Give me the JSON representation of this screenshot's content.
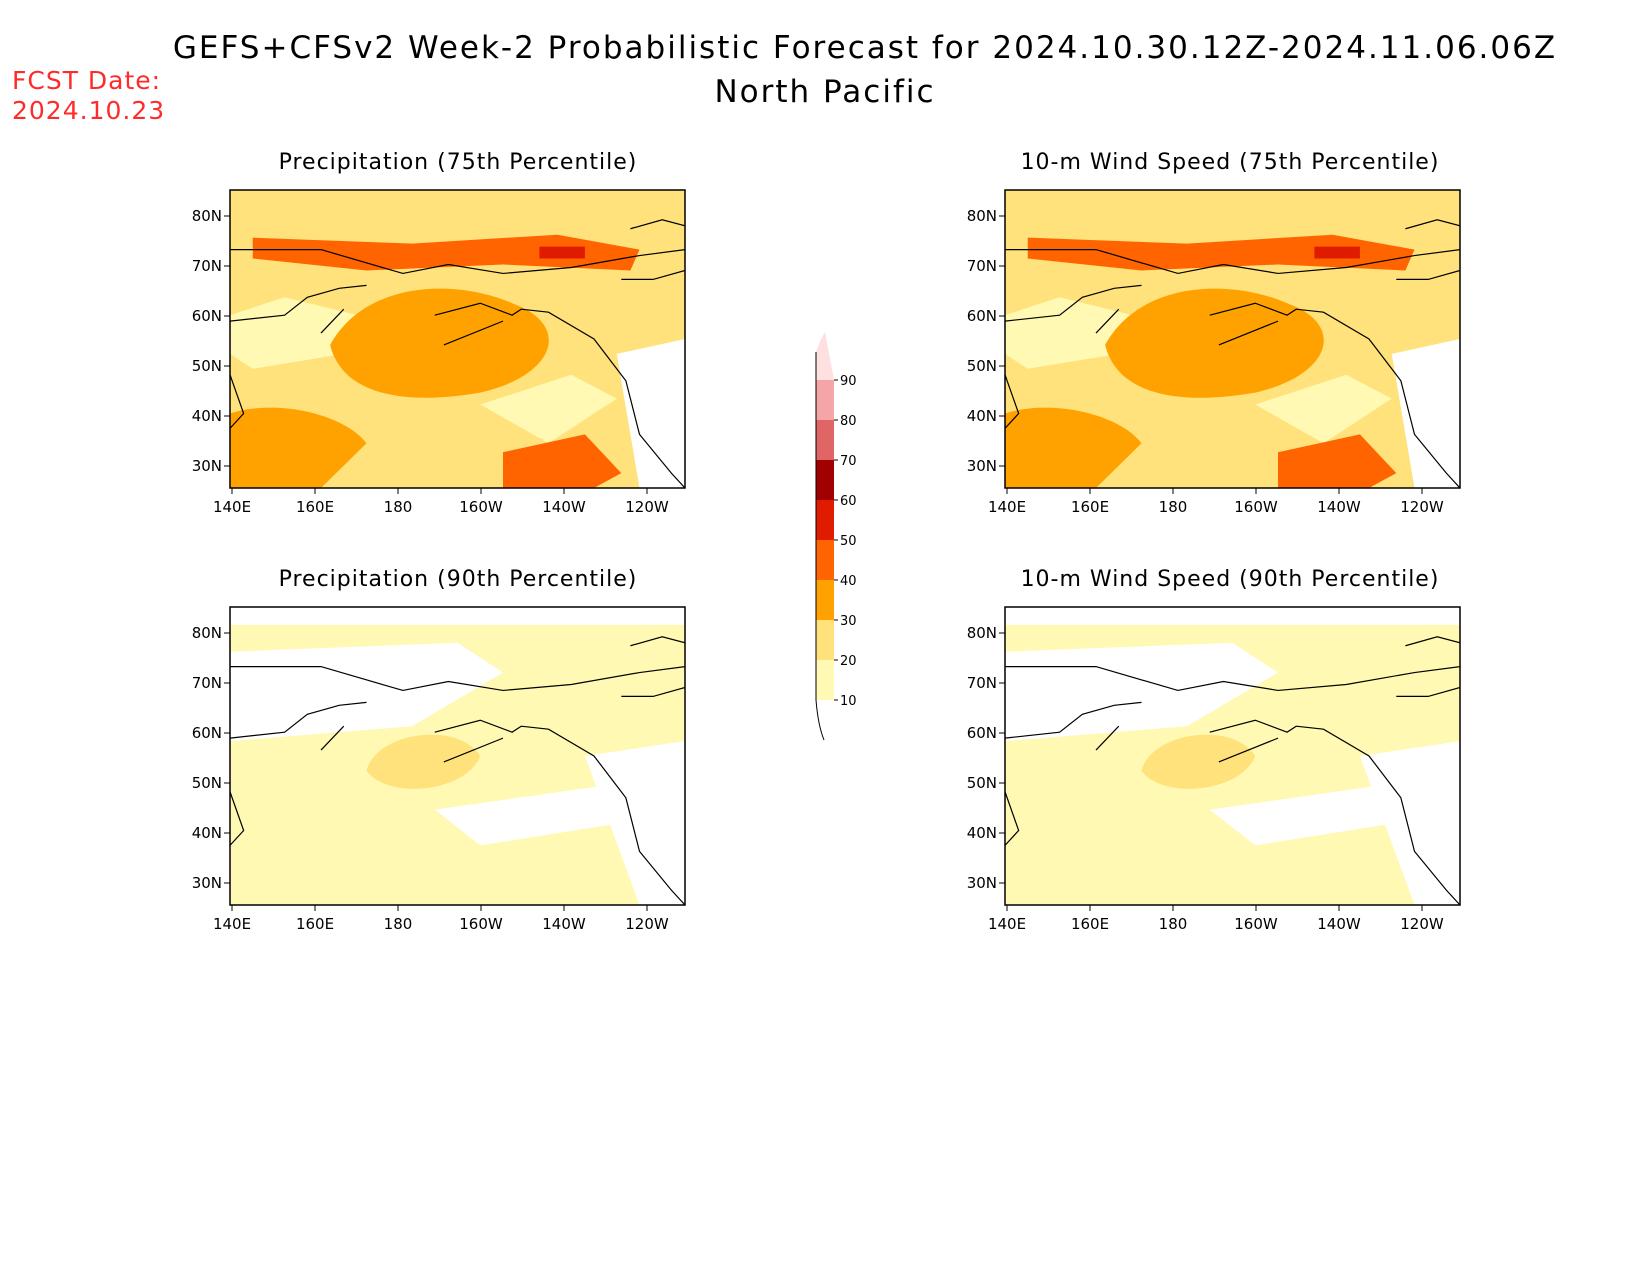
{
  "header": {
    "title": "GEFS+CFSv2 Week-2 Probabilistic Forecast for 2024.10.30.12Z-2024.11.06.06Z",
    "region": "North Pacific",
    "fcst_label": "FCST Date:",
    "fcst_date": "2024.10.23"
  },
  "axes": {
    "lon_labels": [
      "140E",
      "160E",
      "180",
      "160W",
      "140W",
      "120W"
    ],
    "lat_labels": [
      "80N",
      "70N",
      "60N",
      "50N",
      "40N",
      "30N"
    ]
  },
  "panels": [
    {
      "id": "precip75",
      "title": "Precipitation (75th Percentile)",
      "intensity": "high"
    },
    {
      "id": "wind75",
      "title": "10-m Wind Speed (75th Percentile)",
      "intensity": "high"
    },
    {
      "id": "precip90",
      "title": "Precipitation (90th Percentile)",
      "intensity": "low"
    },
    {
      "id": "wind90",
      "title": "10-m Wind Speed (90th Percentile)",
      "intensity": "low"
    }
  ],
  "colorbar": {
    "levels": [
      "10",
      "20",
      "30",
      "40",
      "50",
      "60",
      "70",
      "80",
      "90"
    ],
    "colors": [
      "#fff9b4",
      "#ffe27c",
      "#ffa200",
      "#ff6400",
      "#e01c00",
      "#a00000",
      "#e06666",
      "#f4a6a6",
      "#ffe0e0"
    ]
  }
}
